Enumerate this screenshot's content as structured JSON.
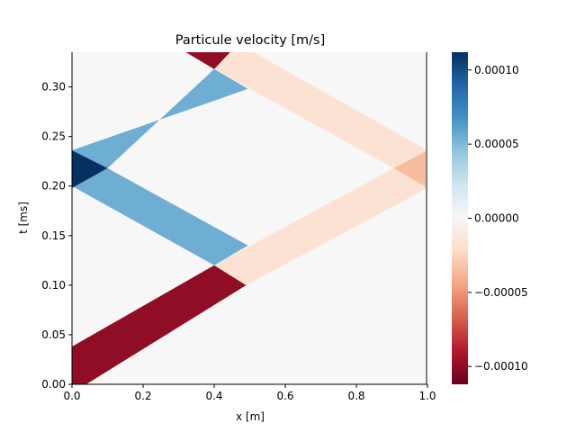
{
  "chart_data": {
    "type": "heatmap",
    "title": "Particule velocity [m/s]",
    "xlabel": "x [m]",
    "ylabel": "t [ms]",
    "xlim": [
      0,
      1
    ],
    "ylim": [
      0,
      0.335
    ],
    "x_ticks": [
      0.0,
      0.2,
      0.4,
      0.6,
      0.8,
      1.0
    ],
    "x_tick_labels": [
      "0.0",
      "0.2",
      "0.4",
      "0.6",
      "0.8",
      "1.0"
    ],
    "y_ticks": [
      0.0,
      0.05,
      0.1,
      0.15,
      0.2,
      0.25,
      0.3
    ],
    "y_tick_labels": [
      "0.00",
      "0.05",
      "0.10",
      "0.15",
      "0.20",
      "0.25",
      "0.30"
    ],
    "background_value": 0.0,
    "boundary_line_x": 1.0,
    "colormap": "RdBu",
    "colorbar": {
      "vmin": -0.000112,
      "vmax": 0.000112,
      "ticks": [
        0.0001,
        5e-05,
        0.0,
        -5e-05,
        -0.0001
      ],
      "tick_labels": [
        "0.00010",
        "0.00005",
        "0.00000",
        "−0.00005",
        "−0.00010"
      ]
    },
    "regions": [
      {
        "value": -0.0001,
        "polygon": [
          [
            0.0,
            0.0
          ],
          [
            0.0,
            0.038
          ],
          [
            0.4,
            0.12
          ],
          [
            0.49,
            0.1
          ],
          [
            0.04,
            0.0
          ]
        ]
      },
      {
        "value": -0.0001,
        "polygon": [
          [
            0.32,
            0.335
          ],
          [
            0.4,
            0.318
          ],
          [
            0.445,
            0.335
          ]
        ]
      },
      {
        "value": 5.5e-05,
        "polygon": [
          [
            0.4,
            0.12
          ],
          [
            0.49,
            0.1
          ],
          [
            0.4,
            0.12
          ]
        ]
      },
      {
        "value": 5.5e-05,
        "polygon": [
          [
            0.1,
            0.218
          ],
          [
            0.0,
            0.198
          ],
          [
            0.0,
            0.2
          ],
          [
            0.4,
            0.12
          ],
          [
            0.495,
            0.14
          ]
        ]
      },
      {
        "value": 5.5e-05,
        "polygon": [
          [
            0.0,
            0.236
          ],
          [
            0.1,
            0.218
          ],
          [
            0.4,
            0.318
          ],
          [
            0.495,
            0.298
          ]
        ]
      },
      {
        "value": 0.000112,
        "polygon": [
          [
            0.0,
            0.198
          ],
          [
            0.0,
            0.236
          ],
          [
            0.1,
            0.218
          ]
        ]
      },
      {
        "value": -1.7e-05,
        "polygon": [
          [
            0.4,
            0.12
          ],
          [
            0.49,
            0.1
          ],
          [
            1.0,
            0.198
          ],
          [
            0.905,
            0.218
          ]
        ]
      },
      {
        "value": -1.7e-05,
        "polygon": [
          [
            0.4,
            0.318
          ],
          [
            0.45,
            0.335
          ],
          [
            0.51,
            0.335
          ],
          [
            1.0,
            0.236
          ],
          [
            0.905,
            0.218
          ]
        ]
      },
      {
        "value": -3.5e-05,
        "polygon": [
          [
            0.905,
            0.218
          ],
          [
            1.0,
            0.198
          ],
          [
            1.0,
            0.236
          ]
        ]
      }
    ]
  }
}
